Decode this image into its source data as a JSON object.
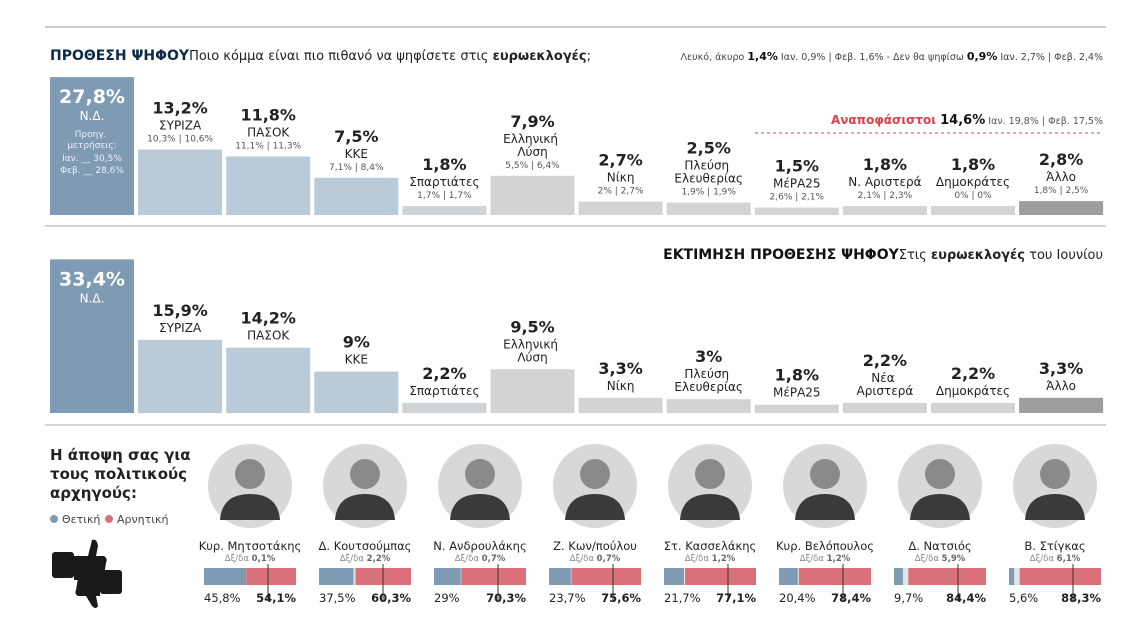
{
  "chart_data": [
    {
      "type": "bar",
      "title": "ΠΡΟΘΕΣΗ ΨΗΦΟΥ",
      "subtitle": [
        "Ποιο κόμμα είναι πιο πιθανό να ψηφίσετε στις ",
        "ευρωεκλογές",
        ";"
      ],
      "note": [
        "Λευκό, άκυρο ",
        "1,4%",
        " Ιαν. 0,9% | Φεβ. 1,6% - Δεν θα ψηφίσω ",
        "0,9%",
        " Ιαν. 2,7% | Φεβ. 2,4%"
      ],
      "annotation": [
        "Αναποφάσιστοι ",
        "14,6%",
        " Ιαν. 19,8% | Φεβ. 17,5%"
      ],
      "categories": [
        "Ν.Δ.",
        "ΣΥΡΙΖΑ",
        "ΠΑΣΟΚ",
        "ΚΚΕ",
        "Σπαρτιάτες",
        "Ελληνική Λύση",
        "Νίκη",
        "Πλεύση Ελευθερίας",
        "ΜέΡΑ25",
        "Ν. Αριστερά",
        "Δημοκράτες",
        "Άλλο"
      ],
      "values": [
        27.8,
        13.2,
        11.8,
        7.5,
        1.8,
        7.9,
        2.7,
        2.5,
        1.5,
        1.8,
        1.8,
        2.8
      ],
      "value_labels": [
        "27,8%",
        "13,2%",
        "11,8%",
        "7,5%",
        "1,8%",
        "7,9%",
        "2,7%",
        "2,5%",
        "1,5%",
        "1,8%",
        "1,8%",
        "2,8%"
      ],
      "previous_heading": "Προηγ. μετρήσεις:",
      "previous_labels": [
        [
          "Ιαν. __ 30,5%",
          "Φεβ. __ 28,6%"
        ],
        [
          "10,3% | 10,6%"
        ],
        [
          "11,1% | 11,3%"
        ],
        [
          "7,1% | 8,4%"
        ],
        [
          "1,7% | 1,7%"
        ],
        [
          "5,5% | 6,4%"
        ],
        [
          "2% | 2,7%"
        ],
        [
          "1,9% | 1,9%"
        ],
        [
          "2,6% | 2,1%"
        ],
        [
          "2,1% | 2,3%"
        ],
        [
          "0% | 0%"
        ],
        [
          "1,8% | 2,5%"
        ]
      ],
      "colors": [
        "#7f9bb3",
        "#b9cbd9",
        "#b9cbd9",
        "#b9cbd9",
        "#d0d3d6",
        "#d3d3d3",
        "#d3d3d3",
        "#d3d3d3",
        "#d3d3d3",
        "#d3d3d3",
        "#d3d3d3",
        "#9e9e9e"
      ]
    },
    {
      "type": "bar",
      "title": "ΕΚΤΙΜΗΣΗ ΠΡΟΘΕΣΗΣ ΨΗΦΟΥ",
      "subtitle": [
        "Στις ",
        "ευρωεκλογές",
        " του Ιουνίου"
      ],
      "categories": [
        "Ν.Δ.",
        "ΣΥΡΙΖΑ",
        "ΠΑΣΟΚ",
        "ΚΚΕ",
        "Σπαρτιάτες",
        "Ελληνική Λύση",
        "Νίκη",
        "Πλεύση Ελευθερίας",
        "ΜέΡΑ25",
        "Νέα Αριστερά",
        "Δημοκράτες",
        "Άλλο"
      ],
      "values": [
        33.4,
        15.9,
        14.2,
        9,
        2.2,
        9.5,
        3.3,
        3,
        1.8,
        2.2,
        2.2,
        3.3
      ],
      "value_labels": [
        "33,4%",
        "15,9%",
        "14,2%",
        "9%",
        "2,2%",
        "9,5%",
        "3,3%",
        "3%",
        "1,8%",
        "2,2%",
        "2,2%",
        "3,3%"
      ],
      "colors": [
        "#7f9bb3",
        "#b9cbd9",
        "#b9cbd9",
        "#b9cbd9",
        "#d0d3d6",
        "#d3d3d3",
        "#d3d3d3",
        "#d3d3d3",
        "#d3d3d3",
        "#d3d3d3",
        "#d3d3d3",
        "#9e9e9e"
      ]
    },
    {
      "type": "stacked-bar",
      "title": "Η άποψη σας για τους πολιτικούς αρχηγούς:",
      "categories": [
        "Κυρ. Μητσοτάκης",
        "Δ. Κουτσούμπας",
        "Ν. Ανδρουλάκης",
        "Ζ. Κων/πούλου",
        "Στ. Κασσελάκης",
        "Κυρ. Βελόπουλος",
        "Δ. Νατσιός",
        "Β. Στίγκας"
      ],
      "dk_prefix": "Δξ/δα",
      "dk_values": [
        0.1,
        2.2,
        0.7,
        0.7,
        1.2,
        1.2,
        5.9,
        6.1
      ],
      "dk_labels": [
        "0,1%",
        "2,2%",
        "0,7%",
        "0,7%",
        "1,2%",
        "1,2%",
        "5,9%",
        "6,1%"
      ],
      "series": [
        {
          "name": "Θετική",
          "color": "#7f9bb3",
          "values": [
            45.8,
            37.5,
            29,
            23.7,
            21.7,
            20.4,
            9.7,
            5.6
          ],
          "value_labels": [
            "45,8%",
            "37,5%",
            "29%",
            "23,7%",
            "21,7%",
            "20,4%",
            "9,7%",
            "5,6%"
          ]
        },
        {
          "name": "Αρνητική",
          "color": "#d9707a",
          "values": [
            54.1,
            60.3,
            70.3,
            75.6,
            77.1,
            78.4,
            84.4,
            88.3
          ],
          "value_labels": [
            "54,1%",
            "60,3%",
            "70,3%",
            "75,6%",
            "77,1%",
            "78,4%",
            "84,4%",
            "88,3%"
          ]
        }
      ]
    }
  ]
}
